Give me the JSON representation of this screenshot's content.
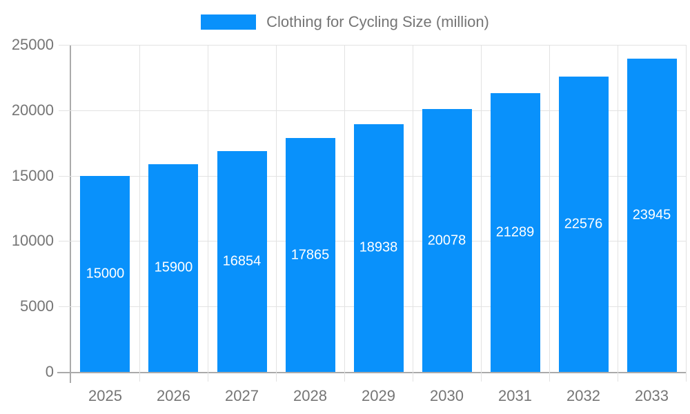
{
  "legend": {
    "label": "Clothing for Cycling Size (million)"
  },
  "chart_data": {
    "type": "bar",
    "title": "Clothing for Cycling Size (million)",
    "categories": [
      "2025",
      "2026",
      "2027",
      "2028",
      "2029",
      "2030",
      "2031",
      "2032",
      "2033"
    ],
    "values": [
      15000,
      15900,
      16854,
      17865,
      18938,
      20078,
      21289,
      22576,
      23945
    ],
    "xlabel": "",
    "ylabel": "",
    "ylim": [
      0,
      25000
    ],
    "yticks": [
      0,
      5000,
      10000,
      15000,
      20000,
      25000
    ],
    "grid": true,
    "legend_position": "top-center",
    "bar_color": "#0991fb",
    "value_label_color": "#ffffff",
    "axis_color": "#aaaaaa",
    "gridline_color": "#e2e2e2",
    "tick_text_color": "#757575",
    "background_color": "#ffffff"
  }
}
